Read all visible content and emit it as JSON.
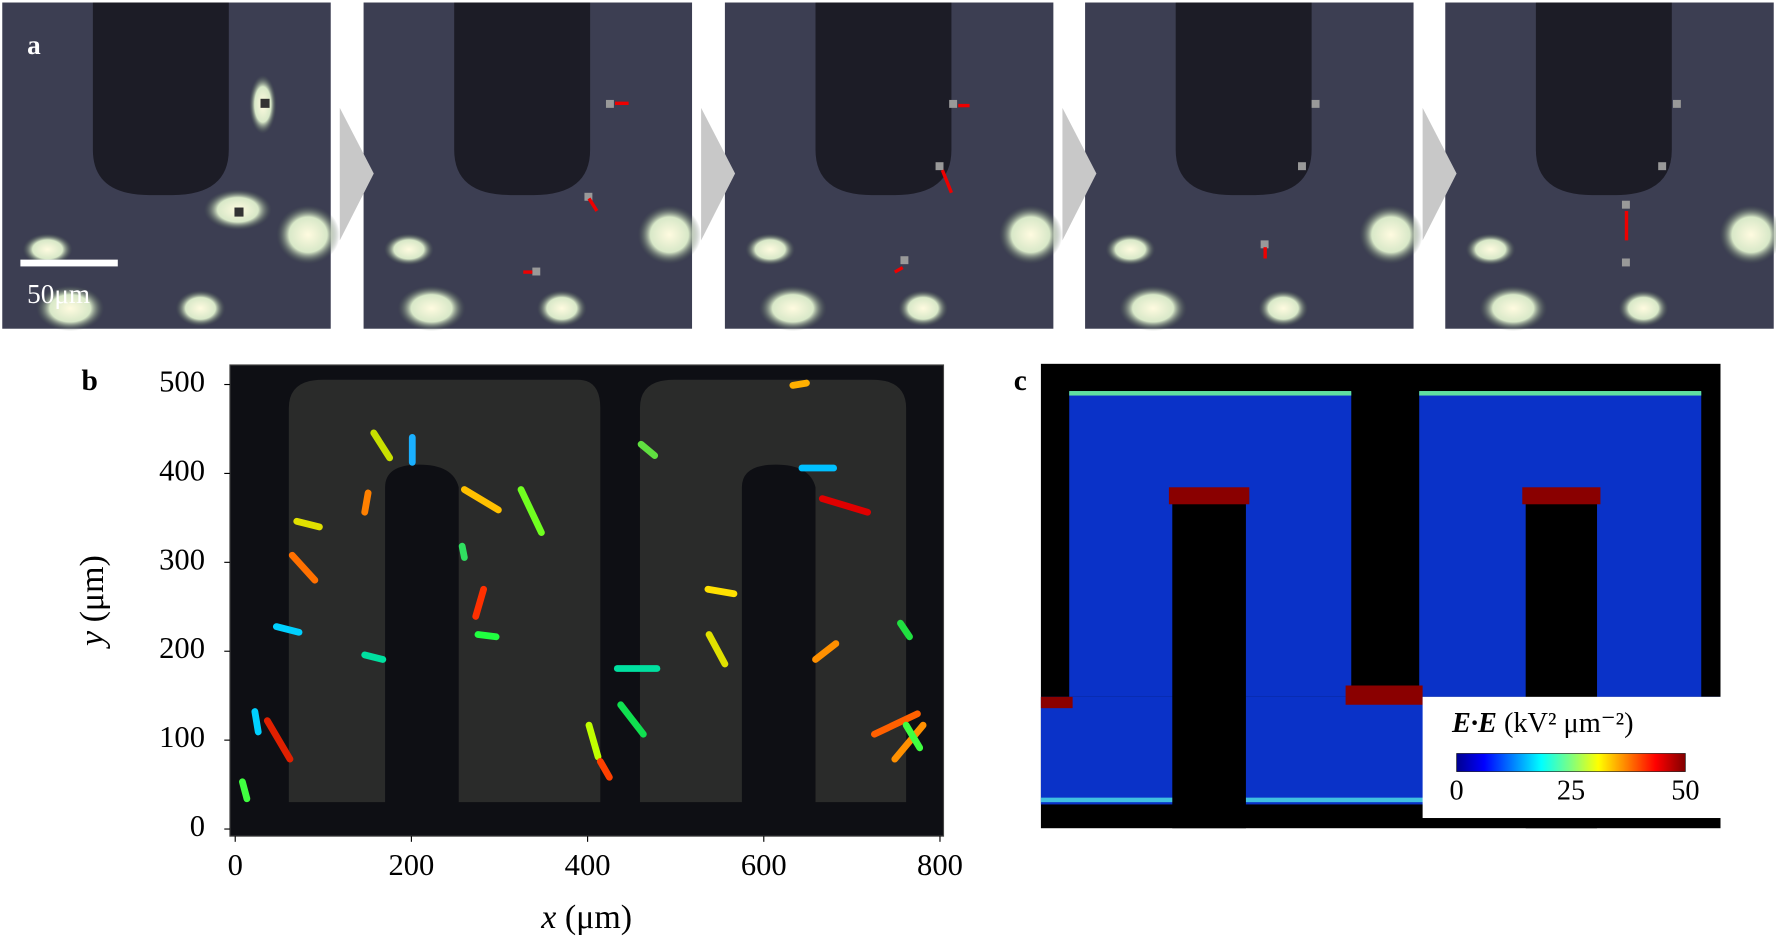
{
  "panels": {
    "a": {
      "label": "a",
      "scale_bar": "50μm"
    },
    "b": {
      "label": "b",
      "x_label_var": "x",
      "x_label_unit": "(μm)",
      "y_label_var": "y",
      "y_label_unit": "(μm)",
      "xlim": [
        -6,
        804
      ],
      "ylim": [
        -8,
        522
      ],
      "xticks": [
        0,
        200,
        400,
        600,
        800
      ],
      "yticks": [
        0,
        100,
        200,
        300,
        400,
        500
      ]
    },
    "c": {
      "label": "c",
      "colorbar": {
        "title_var": "E·E",
        "title_unit": "(kV² μm⁻²)",
        "range": [
          0,
          50
        ],
        "ticks": [
          0,
          25,
          50
        ]
      }
    }
  }
}
